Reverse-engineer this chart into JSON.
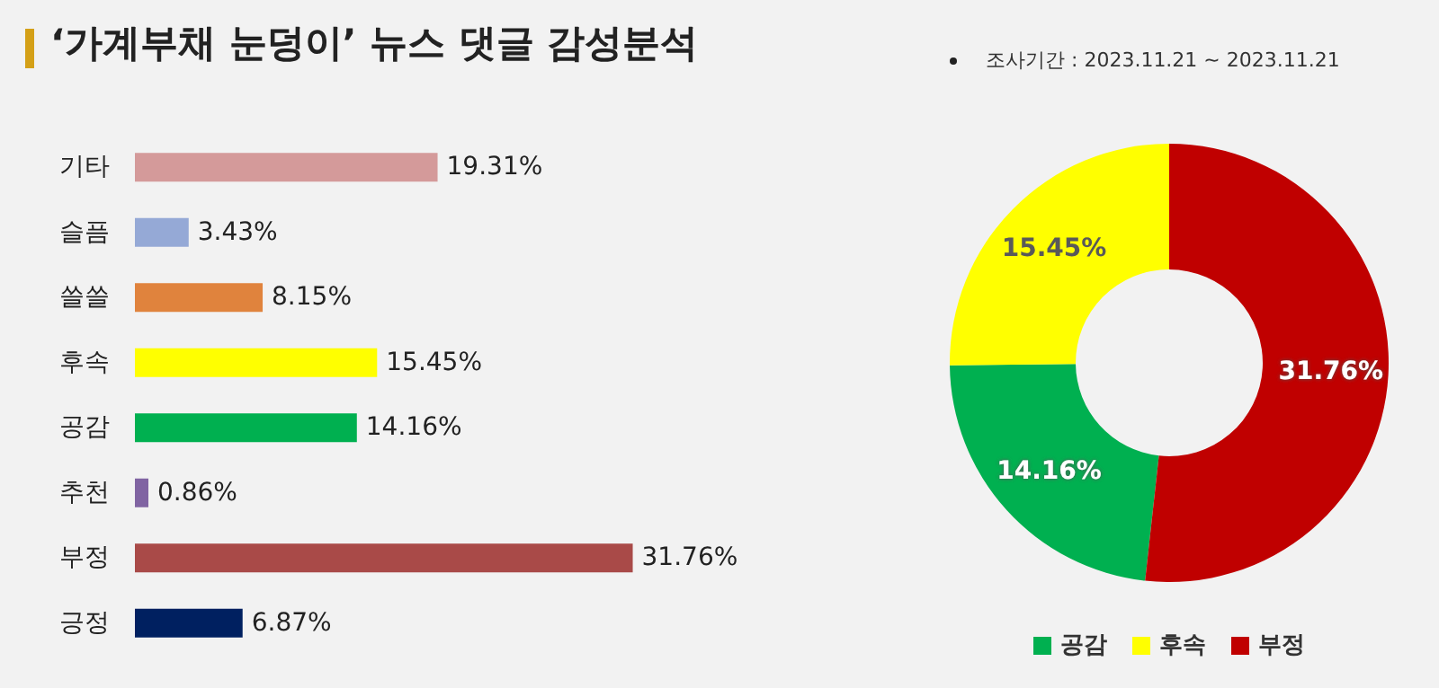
{
  "chart_data": [
    {
      "type": "bar",
      "title": "‘가계부채 눈덩이’ 뉴스 댓글 감성분석",
      "annotations": [
        "조사기간 : 2023.11.21 ~ 2023.11.21"
      ],
      "orientation": "horizontal",
      "categories": [
        "기타",
        "슬픔",
        "쓸쓸",
        "후속",
        "공감",
        "추천",
        "부정",
        "긍정"
      ],
      "values": [
        19.31,
        3.43,
        8.15,
        15.45,
        14.16,
        0.86,
        31.76,
        6.87
      ],
      "value_labels": [
        "19.31%",
        "3.43%",
        "8.15%",
        "15.45%",
        "14.16%",
        "0.86%",
        "31.76%",
        "6.87%"
      ],
      "colors": [
        "#d49a9a",
        "#95a9d6",
        "#e0833d",
        "#ffff00",
        "#00b050",
        "#8064a2",
        "#a94a48",
        "#002060"
      ]
    },
    {
      "type": "donut",
      "legend": "bottom",
      "categories": [
        "공감",
        "후속",
        "부정"
      ],
      "values": [
        14.16,
        15.45,
        31.76
      ],
      "value_labels": [
        "14.16%",
        "15.45%",
        "31.76%"
      ],
      "colors": [
        "#00b050",
        "#ffff00",
        "#c00000"
      ]
    }
  ]
}
